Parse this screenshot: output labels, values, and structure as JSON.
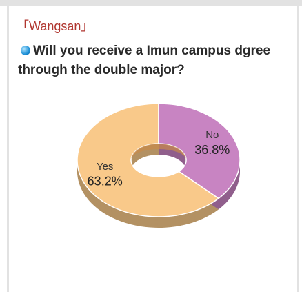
{
  "chart_data": {
    "type": "pie",
    "title": "「Wangsan」",
    "subtitle": "Will you receive a Imun campus dgree through the double major?",
    "categories": [
      "Yes",
      "No"
    ],
    "values": [
      63.2,
      36.8
    ],
    "value_labels": [
      "63.2%",
      "36.8%"
    ],
    "colors": [
      "#f9c98a",
      "#c884c2"
    ]
  }
}
